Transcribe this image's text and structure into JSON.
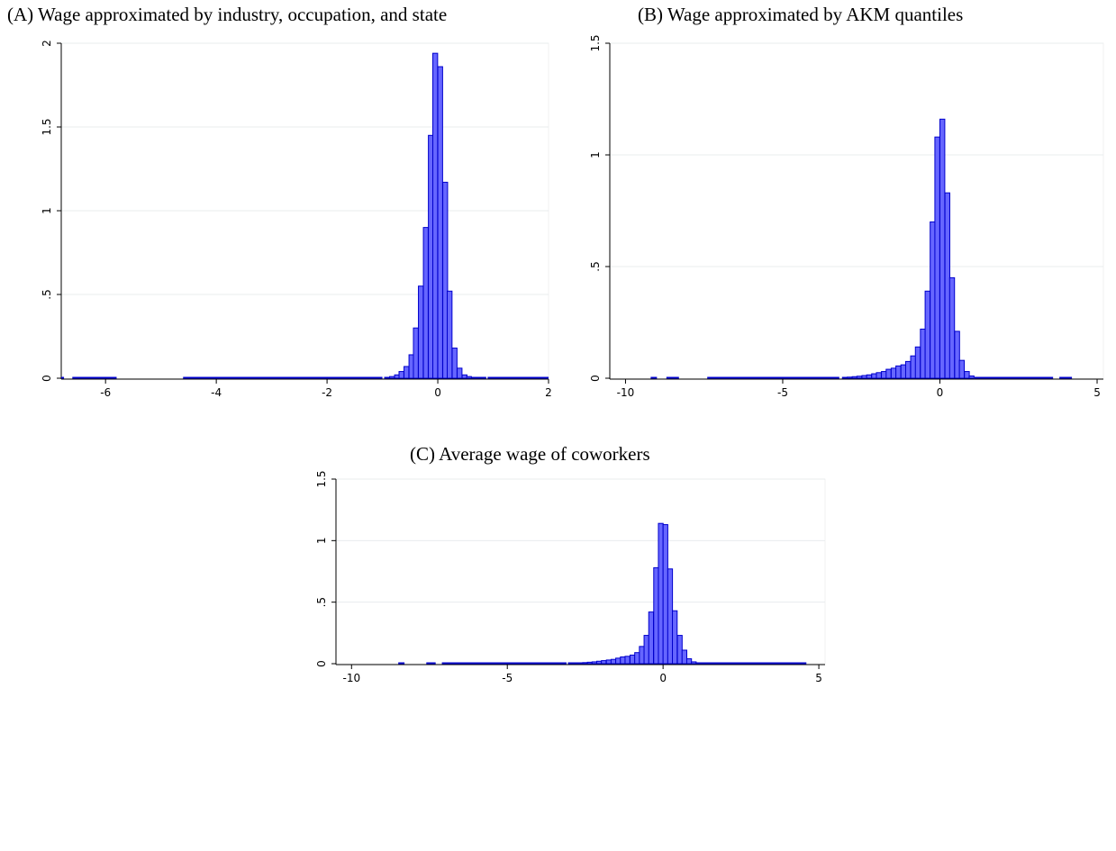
{
  "chart_data": [
    {
      "type": "bar",
      "title": "(A)  Wage approximated by industry, occupation, and state",
      "xlim": [
        -6.8,
        2.0
      ],
      "ylim": [
        0,
        2.0
      ],
      "xticks": [
        -6,
        -4,
        -2,
        0,
        2
      ],
      "xtick_labels": [
        "-6",
        "-4",
        "-2",
        "0",
        "2"
      ],
      "yticks": [
        0,
        0.5,
        1,
        1.5,
        2
      ],
      "ytick_labels": [
        "0",
        ".5",
        "1",
        "1.5",
        "2"
      ],
      "grid": true,
      "bar_color": "#6666ff",
      "edge_color": "#0000cc",
      "bin_width": 0.087,
      "x": [
        -0.96,
        -0.87,
        -0.78,
        -0.7,
        -0.61,
        -0.52,
        -0.44,
        -0.35,
        -0.26,
        -0.17,
        -0.09,
        0.0,
        0.09,
        0.17,
        0.26,
        0.35,
        0.44,
        0.52,
        0.61,
        0.7,
        0.78
      ],
      "values": [
        0.005,
        0.01,
        0.02,
        0.04,
        0.07,
        0.14,
        0.3,
        0.55,
        0.9,
        1.45,
        1.94,
        1.86,
        1.17,
        0.52,
        0.18,
        0.06,
        0.02,
        0.01,
        0.005,
        0.003,
        0.002
      ],
      "baseline_segments": [
        [
          -6.8,
          -6.75
        ],
        [
          -6.6,
          -5.8
        ],
        [
          -4.6,
          -1.0
        ],
        [
          0.9,
          2.0
        ]
      ]
    },
    {
      "type": "bar",
      "title": "(B)  Wage approximated by AKM quantiles",
      "xlim": [
        -10.5,
        5.2
      ],
      "ylim": [
        0,
        1.5
      ],
      "xticks": [
        -10,
        -5,
        0,
        5
      ],
      "xtick_labels": [
        "-10",
        "-5",
        "0",
        "5"
      ],
      "yticks": [
        0,
        0.5,
        1,
        1.5
      ],
      "ytick_labels": [
        "0",
        ".5",
        "1",
        "1.5"
      ],
      "grid": true,
      "bar_color": "#6666ff",
      "edge_color": "#0000cc",
      "bin_width": 0.155,
      "x": [
        -3.1,
        -2.95,
        -2.79,
        -2.64,
        -2.48,
        -2.33,
        -2.17,
        -2.02,
        -1.86,
        -1.71,
        -1.55,
        -1.4,
        -1.24,
        -1.09,
        -0.93,
        -0.78,
        -0.62,
        -0.47,
        -0.31,
        -0.16,
        0.0,
        0.16,
        0.31,
        0.47,
        0.62,
        0.78,
        0.93
      ],
      "values": [
        0.003,
        0.005,
        0.007,
        0.009,
        0.012,
        0.015,
        0.02,
        0.025,
        0.03,
        0.04,
        0.045,
        0.055,
        0.06,
        0.075,
        0.1,
        0.14,
        0.22,
        0.39,
        0.7,
        1.08,
        1.16,
        0.83,
        0.45,
        0.21,
        0.08,
        0.03,
        0.01
      ],
      "baseline_segments": [
        [
          -9.2,
          -9.0
        ],
        [
          -8.7,
          -8.3
        ],
        [
          -7.4,
          -3.2
        ],
        [
          1.1,
          3.6
        ],
        [
          3.8,
          4.2
        ]
      ]
    },
    {
      "type": "bar",
      "title": "(C)  Average wage of coworkers",
      "xlim": [
        -10.5,
        5.2
      ],
      "ylim": [
        0,
        1.5
      ],
      "xticks": [
        -10,
        -5,
        0,
        5
      ],
      "xtick_labels": [
        "-10",
        "-5",
        "0",
        "5"
      ],
      "yticks": [
        0,
        0.5,
        1,
        1.5
      ],
      "ytick_labels": [
        "0",
        ".5",
        "1",
        "1.5"
      ],
      "grid": true,
      "bar_color": "#6666ff",
      "edge_color": "#0000cc",
      "bin_width": 0.152,
      "x": [
        -3.04,
        -2.89,
        -2.74,
        -2.58,
        -2.43,
        -2.28,
        -2.13,
        -1.98,
        -1.82,
        -1.67,
        -1.52,
        -1.37,
        -1.22,
        -1.06,
        -0.91,
        -0.76,
        -0.61,
        -0.46,
        -0.3,
        -0.15,
        0.0,
        0.15,
        0.3,
        0.46,
        0.61,
        0.76,
        0.91,
        1.06
      ],
      "values": [
        0.003,
        0.005,
        0.007,
        0.009,
        0.012,
        0.015,
        0.02,
        0.025,
        0.03,
        0.035,
        0.045,
        0.055,
        0.06,
        0.07,
        0.09,
        0.14,
        0.23,
        0.42,
        0.78,
        1.14,
        1.13,
        0.77,
        0.43,
        0.23,
        0.11,
        0.04,
        0.015,
        0.005
      ],
      "baseline_segments": [
        [
          -8.5,
          -8.3
        ],
        [
          -7.6,
          -7.3
        ],
        [
          -7.1,
          -3.1
        ],
        [
          1.2,
          4.6
        ]
      ]
    }
  ]
}
